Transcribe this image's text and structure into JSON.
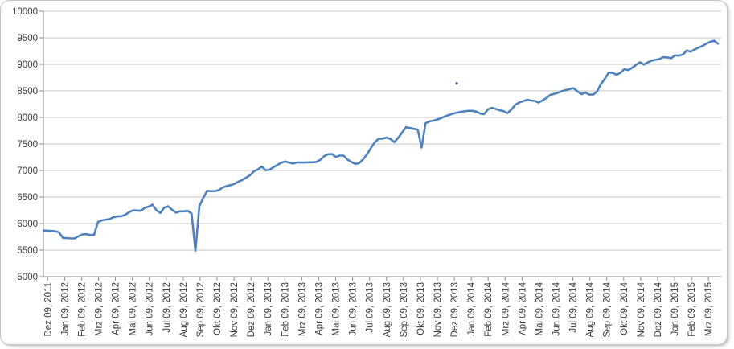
{
  "chart": {
    "kind": "excel-line-chart",
    "colors": {
      "series_line": "#4F81BD",
      "gridline": "#c6c6c6",
      "axis_line": "#8a8a8a",
      "tick_label_text": "#3b3b3b",
      "frame_border": "#c3c3c3",
      "background": "#ffffff",
      "stray_dot": "#31508e"
    }
  },
  "chart_data": {
    "type": "line",
    "title": "",
    "xlabel": "",
    "ylabel": "",
    "legend": "none",
    "grid": "horizontal",
    "ylim": [
      5000,
      10000
    ],
    "y_major_unit": 500,
    "x_label_rotation_degrees": 90,
    "y_tick_labels": [
      "10000",
      "9500",
      "9000",
      "8500",
      "8000",
      "7500",
      "7000",
      "6500",
      "6000",
      "5500",
      "5000"
    ],
    "x_tick_labels": [
      "Dez 09, 2011",
      "Jan 09, 2012",
      "Feb 09, 2012",
      "Mrz 09, 2012",
      "Apr 09, 2012",
      "Mai 09, 2012",
      "Jun 09, 2012",
      "Jul 09, 2012",
      "Aug 09, 2012",
      "Sep 09, 2012",
      "Okt 09, 2012",
      "Nov 09, 2012",
      "Dez 09, 2012",
      "Jan 09, 2013",
      "Feb 09, 2013",
      "Mrz 09, 2013",
      "Apr 09, 2013",
      "Mai 09, 2013",
      "Jun 09, 2013",
      "Jul 09, 2013",
      "Aug 09, 2013",
      "Sep 09, 2013",
      "Okt 09, 2013",
      "Nov 09, 2013",
      "Dez 09, 2013",
      "Jan 09, 2014",
      "Feb 09, 2014",
      "Mrz 09, 2014",
      "Apr 09, 2014",
      "Mai 09, 2014",
      "Jun 09, 2014",
      "Jul 09, 2014",
      "Aug 09, 2014",
      "Sep 09, 2014",
      "Okt 09, 2014",
      "Nov 09, 2014",
      "Dez 09, 2014",
      "Jan 09, 2015",
      "Feb 09, 2015",
      "Mrz 09, 2015"
    ],
    "sampling_note": "values estimated weekly from Dez 09 2011 through late Mrz 2015",
    "series": [
      {
        "name": "",
        "color": "#4F81BD",
        "values": [
          5870,
          5865,
          5860,
          5855,
          5835,
          5730,
          5725,
          5720,
          5720,
          5760,
          5795,
          5800,
          5785,
          5785,
          6030,
          6060,
          6075,
          6085,
          6120,
          6135,
          6140,
          6165,
          6215,
          6250,
          6245,
          6240,
          6295,
          6320,
          6355,
          6250,
          6200,
          6300,
          6325,
          6260,
          6205,
          6230,
          6230,
          6240,
          6190,
          5490,
          6330,
          6480,
          6615,
          6610,
          6610,
          6630,
          6680,
          6705,
          6725,
          6745,
          6790,
          6820,
          6865,
          6910,
          6985,
          7020,
          7075,
          7005,
          7015,
          7060,
          7105,
          7145,
          7170,
          7150,
          7130,
          7150,
          7150,
          7150,
          7155,
          7155,
          7160,
          7200,
          7270,
          7305,
          7310,
          7255,
          7280,
          7280,
          7205,
          7160,
          7125,
          7140,
          7210,
          7305,
          7425,
          7530,
          7600,
          7600,
          7620,
          7595,
          7535,
          7615,
          7715,
          7815,
          7800,
          7785,
          7770,
          7430,
          7890,
          7925,
          7940,
          7960,
          7985,
          8020,
          8045,
          8070,
          8090,
          8105,
          8115,
          8125,
          8125,
          8110,
          8075,
          8060,
          8150,
          8180,
          8160,
          8135,
          8120,
          8080,
          8145,
          8235,
          8280,
          8305,
          8330,
          8320,
          8310,
          8280,
          8320,
          8365,
          8425,
          8445,
          8465,
          8495,
          8515,
          8535,
          8550,
          8490,
          8440,
          8470,
          8430,
          8430,
          8490,
          8630,
          8730,
          8845,
          8840,
          8805,
          8840,
          8910,
          8890,
          8935,
          8990,
          9040,
          8995,
          9035,
          9070,
          9085,
          9100,
          9135,
          9130,
          9115,
          9170,
          9165,
          9185,
          9260,
          9240,
          9280,
          9315,
          9345,
          9390,
          9425,
          9445,
          9390
        ]
      }
    ],
    "annotations": [
      {
        "type": "stray-dot",
        "week_index": 106,
        "value": 8640
      }
    ]
  }
}
